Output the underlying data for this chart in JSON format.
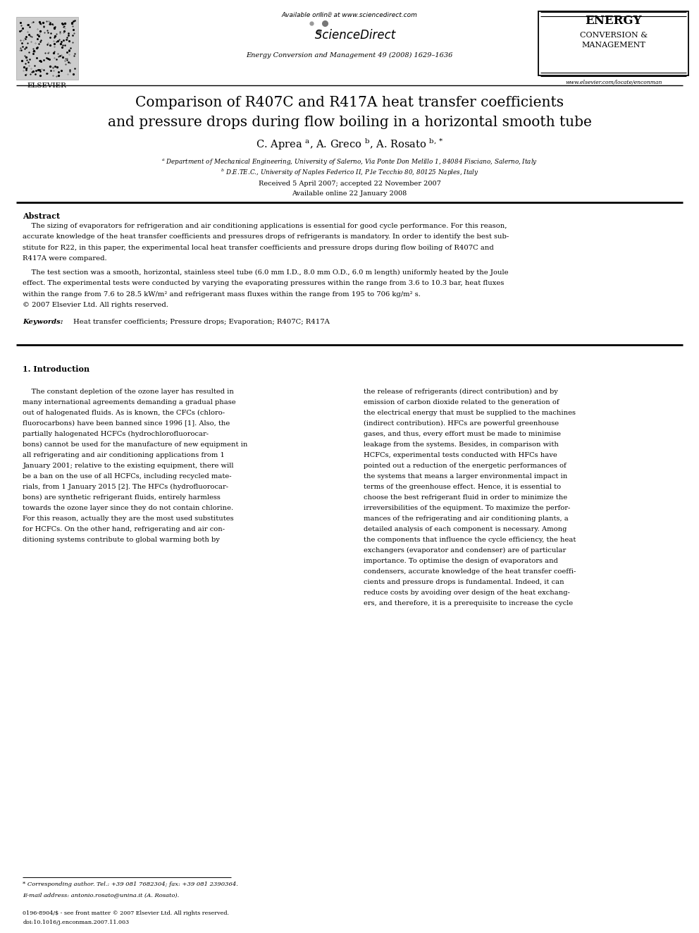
{
  "page_width": 9.92,
  "page_height": 13.23,
  "bg_color": "#ffffff",
  "header": {
    "available_online": "Available online at www.sciencedirect.com",
    "sciencedirect": "ScienceDirect",
    "journal_name": "Energy Conversion and Management 49 (2008) 1629–1636",
    "elsevier_label": "ELSEVIER",
    "ecm_line1": "ENERGY",
    "ecm_line2": "CONVERSION &",
    "ecm_line3": "MANAGEMENT",
    "ecm_url": "www.elsevier.com/locate/enconman"
  },
  "title_line1": "Comparison of R407C and R417A heat transfer coefficients",
  "title_line2": "and pressure drops during flow boiling in a horizontal smooth tube",
  "received": "Received 5 April 2007; accepted 22 November 2007",
  "available_online_date": "Available online 22 January 2008",
  "abstract_title": "Abstract",
  "abstract_copyright": "© 2007 Elsevier Ltd. All rights reserved.",
  "keywords_label": "Keywords:",
  "keywords": "Heat transfer coefficients; Pressure drops; Evaporation; R407C; R417A",
  "section1_title": "1. Introduction",
  "footnote_star": "* Corresponding author. Tel.: +39 081 7682304; fax: +39 081 2390364.",
  "footnote_email": "E-mail address: antonio.rosato@unina.it (A. Rosato).",
  "footer_issn": "0196-8904/$ - see front matter © 2007 Elsevier Ltd. All rights reserved.",
  "footer_doi": "doi:10.1016/j.enconman.2007.11.003",
  "abs1_lines": [
    "    The sizing of evaporators for refrigeration and air conditioning applications is essential for good cycle performance. For this reason,",
    "accurate knowledge of the heat transfer coefficients and pressures drops of refrigerants is mandatory. In order to identify the best sub-",
    "stitute for R22, in this paper, the experimental local heat transfer coefficients and pressure drops during flow boiling of R407C and",
    "R417A were compared."
  ],
  "abs2_lines": [
    "    The test section was a smooth, horizontal, stainless steel tube (6.0 mm I.D., 8.0 mm O.D., 6.0 m length) uniformly heated by the Joule",
    "effect. The experimental tests were conducted by varying the evaporating pressures within the range from 3.6 to 10.3 bar, heat fluxes",
    "within the range from 7.6 to 28.5 kW/m² and refrigerant mass fluxes within the range from 195 to 706 kg/m² s."
  ],
  "col1_lines": [
    "    The constant depletion of the ozone layer has resulted in",
    "many international agreements demanding a gradual phase",
    "out of halogenated fluids. As is known, the CFCs (chloro-",
    "fluorocarbons) have been banned since 1996 [1]. Also, the",
    "partially halogenated HCFCs (hydrochlorofluorocar-",
    "bons) cannot be used for the manufacture of new equipment in",
    "all refrigerating and air conditioning applications from 1",
    "January 2001; relative to the existing equipment, there will",
    "be a ban on the use of all HCFCs, including recycled mate-",
    "rials, from 1 January 2015 [2]. The HFCs (hydrofluorocar-",
    "bons) are synthetic refrigerant fluids, entirely harmless",
    "towards the ozone layer since they do not contain chlorine.",
    "For this reason, actually they are the most used substitutes",
    "for HCFCs. On the other hand, refrigerating and air con-",
    "ditioning systems contribute to global warming both by"
  ],
  "col2_lines": [
    "the release of refrigerants (direct contribution) and by",
    "emission of carbon dioxide related to the generation of",
    "the electrical energy that must be supplied to the machines",
    "(indirect contribution). HFCs are powerful greenhouse",
    "gases, and thus, every effort must be made to minimise",
    "leakage from the systems. Besides, in comparison with",
    "HCFCs, experimental tests conducted with HFCs have",
    "pointed out a reduction of the energetic performances of",
    "the systems that means a larger environmental impact in",
    "terms of the greenhouse effect. Hence, it is essential to",
    "choose the best refrigerant fluid in order to minimize the",
    "irreversibilities of the equipment. To maximize the perfor-",
    "mances of the refrigerating and air conditioning plants, a",
    "detailed analysis of each component is necessary. Among",
    "the components that influence the cycle efficiency, the heat",
    "exchangers (evaporator and condenser) are of particular",
    "importance. To optimise the design of evaporators and",
    "condensers, accurate knowledge of the heat transfer coeffi-",
    "cients and pressure drops is fundamental. Indeed, it can",
    "reduce costs by avoiding over design of the heat exchang-",
    "ers, and therefore, it is a prerequisite to increase the cycle"
  ]
}
